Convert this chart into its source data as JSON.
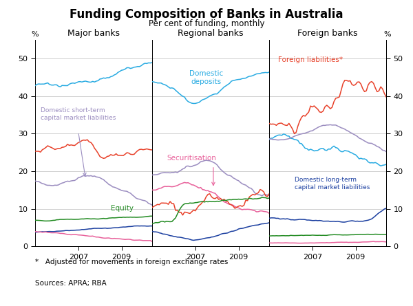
{
  "title": "Funding Composition of Banks in Australia",
  "subtitle": "Per cent of funding, monthly",
  "footnote1": "*   Adjusted for movements in foreign exchange rates",
  "footnote2": "Sources: APRA; RBA",
  "ylim": [
    0,
    55
  ],
  "yticks": [
    0,
    10,
    20,
    30,
    40,
    50
  ],
  "panel_titles": [
    "Major banks",
    "Regional banks",
    "Foreign banks"
  ],
  "colors": {
    "cyan": "#29ABE2",
    "red": "#E8412A",
    "purple": "#9B8DC0",
    "green": "#228B22",
    "blue": "#1B3FA0",
    "magenta": "#E8609A"
  },
  "background": "#FFFFFF",
  "grid_color": "#C8C8C8",
  "border_color": "#000000"
}
